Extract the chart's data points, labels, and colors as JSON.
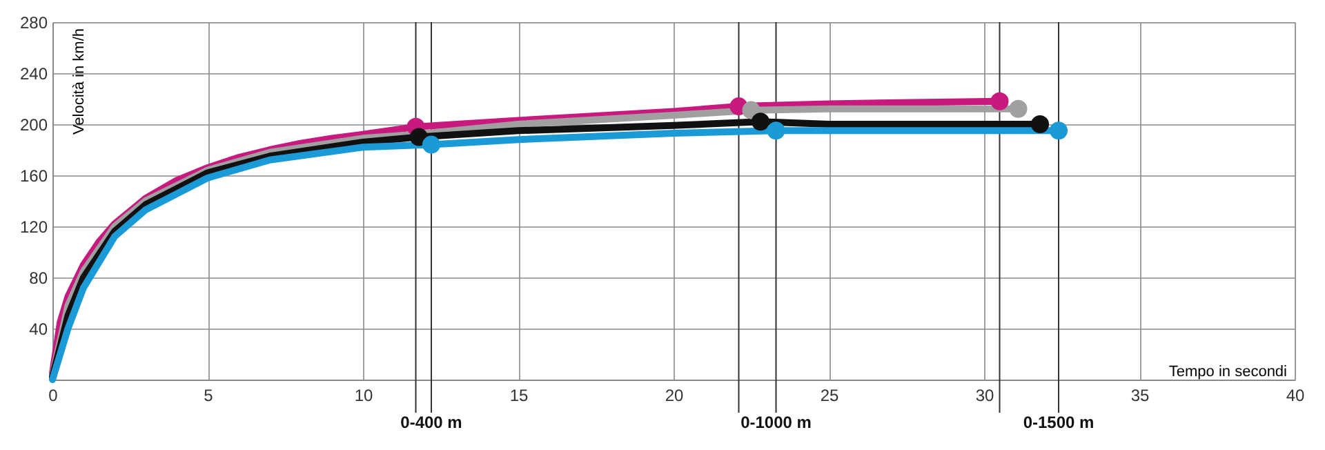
{
  "chart_data": {
    "type": "line",
    "xlabel": "Tempo in secondi",
    "ylabel": "Velocità in km/h",
    "xlim": [
      0,
      40
    ],
    "ylim": [
      0,
      280
    ],
    "xticks": [
      0,
      5,
      10,
      15,
      20,
      25,
      30,
      35,
      40
    ],
    "yticks": [
      {
        "value": 0,
        "label": null
      },
      40,
      80,
      120,
      160,
      200,
      240,
      280
    ],
    "grid": true,
    "marker": "none",
    "line_style": "solid",
    "series": [
      {
        "color": "#c8197f",
        "x": [
          0,
          0.25,
          0.5,
          1,
          1.5,
          2,
          3,
          4,
          5,
          6,
          7,
          8,
          9,
          10,
          11.7,
          15,
          20,
          22.1,
          25,
          30.5
        ],
        "values": [
          5,
          45,
          65,
          90,
          108,
          122,
          142,
          156,
          166,
          174,
          180,
          185,
          189,
          192,
          198,
          203,
          210,
          214,
          216,
          218
        ]
      },
      {
        "color": "#a0a0a0",
        "x": [
          0,
          0.5,
          1,
          2,
          3,
          5,
          7,
          10,
          11.7,
          15,
          20,
          22.5,
          25,
          31.1
        ],
        "values": [
          3,
          58,
          85,
          120,
          140,
          164,
          178,
          189,
          192,
          200,
          207,
          211,
          212,
          212
        ]
      },
      {
        "color": "#111111",
        "x": [
          0,
          0.5,
          1,
          2,
          3,
          5,
          7,
          10,
          11.8,
          15,
          20,
          22.8,
          25,
          31.8
        ],
        "values": [
          2,
          50,
          80,
          116,
          137,
          162,
          175,
          186,
          190,
          195,
          199,
          202,
          200,
          200
        ]
      },
      {
        "color": "#1a9ad6",
        "x": [
          0,
          0.5,
          1,
          2,
          3,
          5,
          7,
          10,
          12.2,
          15,
          20,
          23.3,
          28,
          32.4
        ],
        "values": [
          0,
          40,
          72,
          112,
          133,
          158,
          172,
          182,
          184,
          188,
          193,
          195,
          195,
          195
        ]
      },
      {
        "type": "scatter",
        "marker": "circle",
        "color": "#c8197f",
        "x": [
          11.7,
          22.1,
          30.5
        ],
        "values": [
          198,
          214,
          218
        ]
      },
      {
        "type": "scatter",
        "marker": "circle",
        "color": "#a0a0a0",
        "x": [
          22.5,
          31.1
        ],
        "values": [
          211,
          212
        ]
      },
      {
        "type": "scatter",
        "marker": "circle",
        "color": "#111111",
        "x": [
          11.8,
          22.8,
          31.8
        ],
        "values": [
          190,
          202,
          200
        ]
      },
      {
        "type": "scatter",
        "marker": "circle",
        "color": "#1a9ad6",
        "x": [
          12.2,
          23.3,
          32.4
        ],
        "values": [
          184,
          195,
          195
        ]
      }
    ],
    "ref_lines": [
      {
        "axis": "x",
        "value": 11.7,
        "label": null
      },
      {
        "axis": "x",
        "value": 12.2,
        "label": "0-400 m"
      },
      {
        "axis": "x",
        "value": 22.1,
        "label": null
      },
      {
        "axis": "x",
        "value": 23.3,
        "label": "0-1000 m"
      },
      {
        "axis": "x",
        "value": 30.5,
        "label": null
      },
      {
        "axis": "x",
        "value": 32.4,
        "label": "0-1500 m"
      }
    ]
  }
}
